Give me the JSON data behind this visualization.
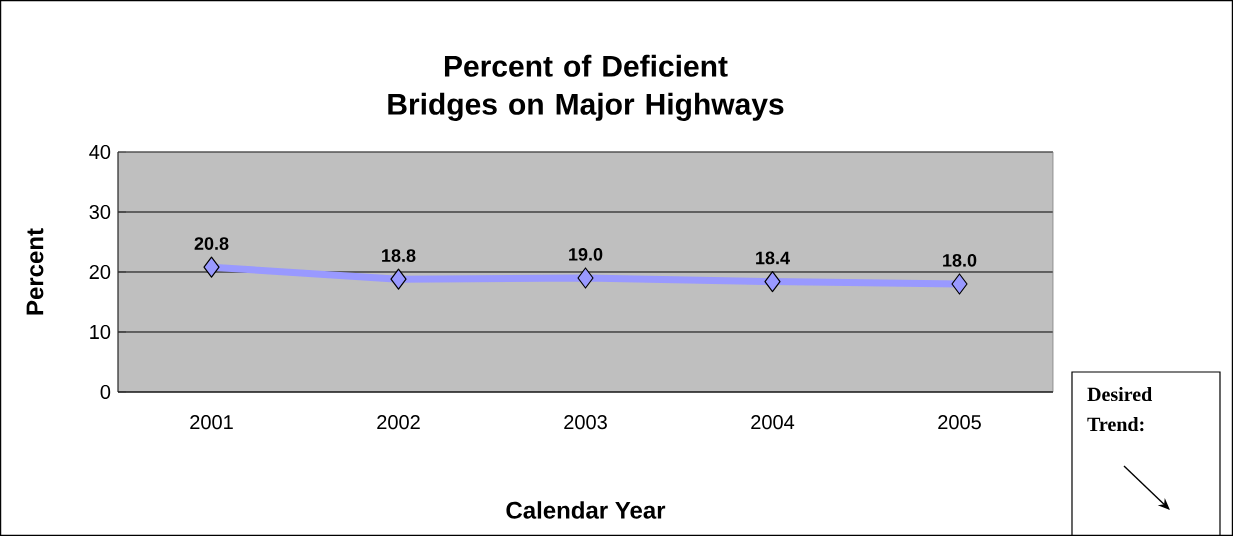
{
  "chart_data": {
    "type": "line",
    "title": "Percent of Deficient Bridges on Major Highways",
    "xlabel": "Calendar Year",
    "ylabel": "Percent",
    "categories": [
      "2001",
      "2002",
      "2003",
      "2004",
      "2005"
    ],
    "series": [
      {
        "color": "#9999ff",
        "values": [
          20.8,
          18.8,
          19.0,
          18.4,
          18.0
        ],
        "value_labels": [
          "20.8",
          "18.8",
          "19.0",
          "18.4",
          "18.0"
        ]
      }
    ],
    "ylim": [
      0,
      40
    ],
    "yticks": [
      0,
      10,
      20,
      30,
      40
    ],
    "grid": "y",
    "marker": "diamond",
    "line_style": "solid",
    "annotations": [
      "Desired Trend:"
    ]
  }
}
